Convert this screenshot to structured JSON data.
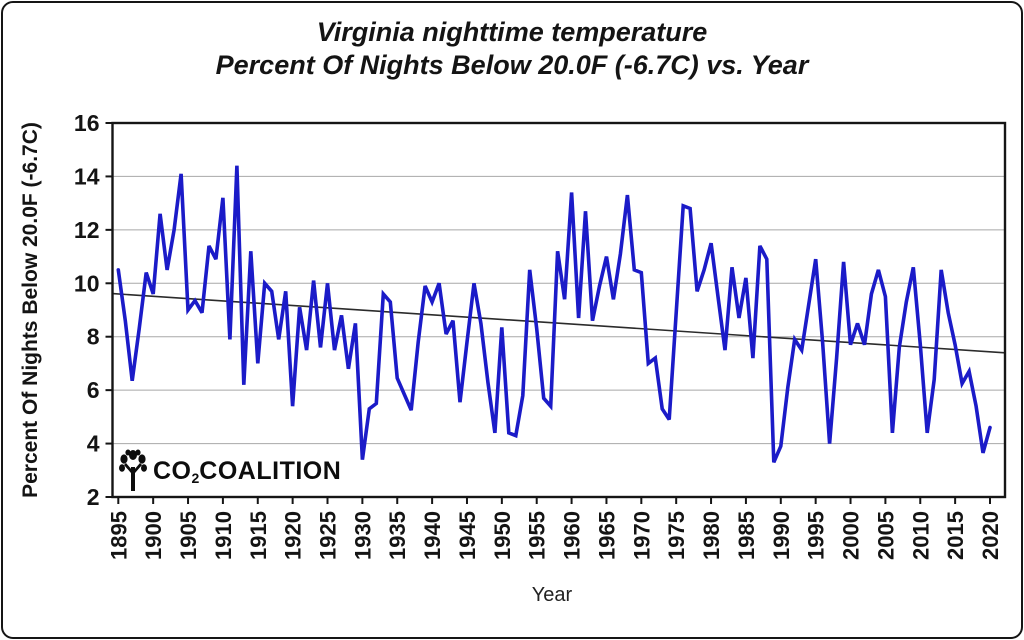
{
  "title": {
    "line1": "Virginia nighttime temperature",
    "line2": "Percent Of Nights Below 20.0F (-6.7C) vs. Year"
  },
  "axes": {
    "y_title": "Percent Of Nights Below 20.0F (-6.7C)",
    "x_title": "Year"
  },
  "logo": {
    "co": "CO",
    "sub": "2",
    "rest": "COALITION"
  },
  "colors": {
    "line": "#1b1bc8",
    "trend": "#2b2b2b",
    "grid": "#a8a8a8",
    "frame": "#151515",
    "text": "#141414"
  },
  "chart_data": {
    "type": "line",
    "title": "Virginia nighttime temperature — Percent Of Nights Below 20.0F (-6.7C) vs. Year",
    "xlabel": "Year",
    "ylabel": "Percent Of Nights Below 20.0F (-6.7C)",
    "ylim": [
      2,
      16
    ],
    "xlim": [
      1894,
      2022
    ],
    "y_ticks": [
      2,
      4,
      6,
      8,
      10,
      12,
      14,
      16
    ],
    "x_ticks": [
      1895,
      1900,
      1905,
      1910,
      1915,
      1920,
      1925,
      1930,
      1935,
      1940,
      1945,
      1950,
      1955,
      1960,
      1965,
      1970,
      1975,
      1980,
      1985,
      1990,
      1995,
      2000,
      2005,
      2010,
      2015,
      2020
    ],
    "grid": "horizontal-only",
    "legend": "none",
    "x": [
      1895,
      1896,
      1897,
      1898,
      1899,
      1900,
      1901,
      1902,
      1903,
      1904,
      1905,
      1906,
      1907,
      1908,
      1909,
      1910,
      1911,
      1912,
      1913,
      1914,
      1915,
      1916,
      1917,
      1918,
      1919,
      1920,
      1921,
      1922,
      1923,
      1924,
      1925,
      1926,
      1927,
      1928,
      1929,
      1930,
      1931,
      1932,
      1933,
      1934,
      1935,
      1936,
      1937,
      1938,
      1939,
      1940,
      1941,
      1942,
      1943,
      1944,
      1945,
      1946,
      1947,
      1948,
      1949,
      1950,
      1951,
      1952,
      1953,
      1954,
      1955,
      1956,
      1957,
      1958,
      1959,
      1960,
      1961,
      1962,
      1963,
      1964,
      1965,
      1966,
      1967,
      1968,
      1969,
      1970,
      1971,
      1972,
      1973,
      1974,
      1975,
      1976,
      1977,
      1978,
      1979,
      1980,
      1981,
      1982,
      1983,
      1984,
      1985,
      1986,
      1987,
      1988,
      1989,
      1990,
      1991,
      1992,
      1993,
      1994,
      1995,
      1996,
      1997,
      1998,
      1999,
      2000,
      2001,
      2002,
      2003,
      2004,
      2005,
      2006,
      2007,
      2008,
      2009,
      2010,
      2011,
      2012,
      2013,
      2014,
      2015,
      2016,
      2017,
      2018,
      2019,
      2020
    ],
    "series": [
      {
        "name": "percent-of-nights-below-20F",
        "values": [
          10.5,
          8.6,
          6.35,
          8.3,
          10.4,
          9.6,
          12.6,
          10.5,
          12.0,
          14.1,
          9.0,
          9.35,
          8.9,
          11.4,
          10.9,
          13.2,
          7.9,
          14.4,
          6.2,
          11.2,
          7.0,
          10.0,
          9.7,
          7.9,
          9.7,
          5.4,
          9.1,
          7.5,
          10.1,
          7.6,
          10.0,
          7.5,
          8.8,
          6.8,
          8.5,
          3.4,
          5.3,
          5.5,
          9.6,
          9.3,
          6.45,
          5.85,
          5.25,
          7.8,
          9.9,
          9.3,
          10.0,
          8.1,
          8.6,
          5.55,
          7.8,
          10.0,
          8.5,
          6.3,
          4.4,
          8.35,
          4.4,
          4.3,
          5.8,
          10.5,
          8.3,
          5.7,
          5.4,
          11.2,
          9.4,
          13.4,
          8.7,
          12.7,
          8.6,
          9.9,
          11.0,
          9.4,
          11.1,
          13.3,
          10.5,
          10.4,
          7.0,
          7.2,
          5.3,
          4.9,
          8.9,
          12.9,
          12.8,
          9.7,
          10.5,
          11.5,
          9.5,
          7.5,
          10.6,
          8.7,
          10.2,
          7.2,
          11.4,
          10.9,
          3.3,
          3.9,
          6.1,
          7.9,
          7.5,
          9.2,
          10.9,
          7.8,
          4.0,
          7.2,
          10.8,
          7.7,
          8.5,
          7.7,
          9.6,
          10.5,
          9.5,
          4.4,
          7.6,
          9.3,
          10.6,
          7.7,
          4.4,
          6.4,
          10.5,
          8.9,
          7.7,
          6.25,
          6.7,
          5.4,
          3.65,
          4.6
        ]
      }
    ],
    "trend": {
      "start_year": 1895,
      "start_value": 9.6,
      "end_year": 2022,
      "end_value": 7.4
    }
  }
}
